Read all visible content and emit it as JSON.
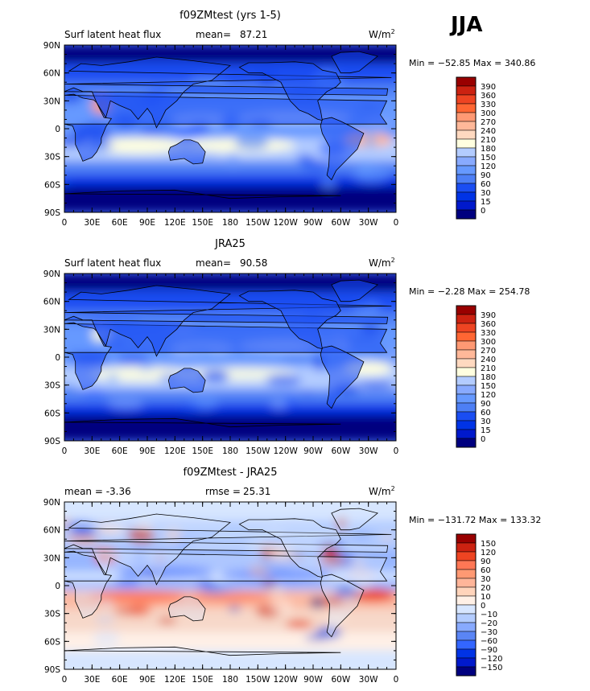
{
  "season": "JJA",
  "colors": {
    "land_outline": "#000000",
    "abs_scale": [
      "#00007f",
      "#0019cc",
      "#0033e6",
      "#1a4df2",
      "#3366ff",
      "#4d7ff5",
      "#6699ff",
      "#88aaff",
      "#b3ccff",
      "#ffffe0",
      "#ffd9c0",
      "#ffb899",
      "#ff9973",
      "#ff7f55",
      "#ff6633",
      "#ee4422",
      "#cc2211",
      "#990000"
    ],
    "diff_scale": [
      "#00007f",
      "#0019cc",
      "#0033e6",
      "#3366ff",
      "#5a85f5",
      "#88aaff",
      "#b3ccff",
      "#d7e6ff",
      "#fff0e6",
      "#ffd4bb",
      "#ffb599",
      "#ff9973",
      "#ff7755",
      "#ee4422",
      "#cc2211",
      "#990000"
    ]
  },
  "chart_data": [
    {
      "type": "heatmap",
      "title": "f09ZMtest (yrs 1-5)",
      "left_label": "Surf latent heat flux",
      "stat_label": "mean=",
      "stat_value": "87.21",
      "units": "W/m",
      "units_sup": "2",
      "minmax": "Min = −52.85 Max = 340.86",
      "x_ticks": [
        "0",
        "30E",
        "60E",
        "90E",
        "120E",
        "150E",
        "180",
        "150W",
        "120W",
        "90W",
        "60W",
        "30W",
        "0"
      ],
      "y_ticks": [
        "90N",
        "60N",
        "30N",
        "0",
        "30S",
        "60S",
        "90S"
      ],
      "colorbar_levels": [
        "390",
        "360",
        "330",
        "300",
        "270",
        "240",
        "210",
        "180",
        "150",
        "120",
        "90",
        "60",
        "30",
        "15",
        "0"
      ],
      "field": "model"
    },
    {
      "type": "heatmap",
      "title": "JRA25",
      "left_label": "Surf latent heat flux",
      "stat_label": "mean=",
      "stat_value": "90.58",
      "units": "W/m",
      "units_sup": "2",
      "minmax": "Min = −2.28 Max = 254.78",
      "x_ticks": [
        "0",
        "30E",
        "60E",
        "90E",
        "120E",
        "150E",
        "180",
        "150W",
        "120W",
        "90W",
        "60W",
        "30W",
        "0"
      ],
      "y_ticks": [
        "90N",
        "60N",
        "30N",
        "0",
        "30S",
        "60S",
        "90S"
      ],
      "colorbar_levels": [
        "390",
        "360",
        "330",
        "300",
        "270",
        "240",
        "210",
        "180",
        "150",
        "120",
        "90",
        "60",
        "30",
        "15",
        "0"
      ],
      "field": "obs"
    },
    {
      "type": "heatmap",
      "title": "f09ZMtest - JRA25",
      "left_label": "mean =  -3.36",
      "stat_label": "rmse =",
      "stat_value": "25.31",
      "units": "W/m",
      "units_sup": "2",
      "minmax": "Min = −131.72 Max = 133.32",
      "x_ticks": [
        "0",
        "30E",
        "60E",
        "90E",
        "120E",
        "150E",
        "180",
        "150W",
        "120W",
        "90W",
        "60W",
        "30W",
        "0"
      ],
      "y_ticks": [
        "90N",
        "60N",
        "30N",
        "0",
        "30S",
        "60S",
        "90S"
      ],
      "colorbar_levels": [
        "150",
        "120",
        "90",
        "60",
        "30",
        "20",
        "10",
        "0",
        "−10",
        "−20",
        "−30",
        "−60",
        "−90",
        "−120",
        "−150"
      ],
      "field": "diff"
    }
  ]
}
